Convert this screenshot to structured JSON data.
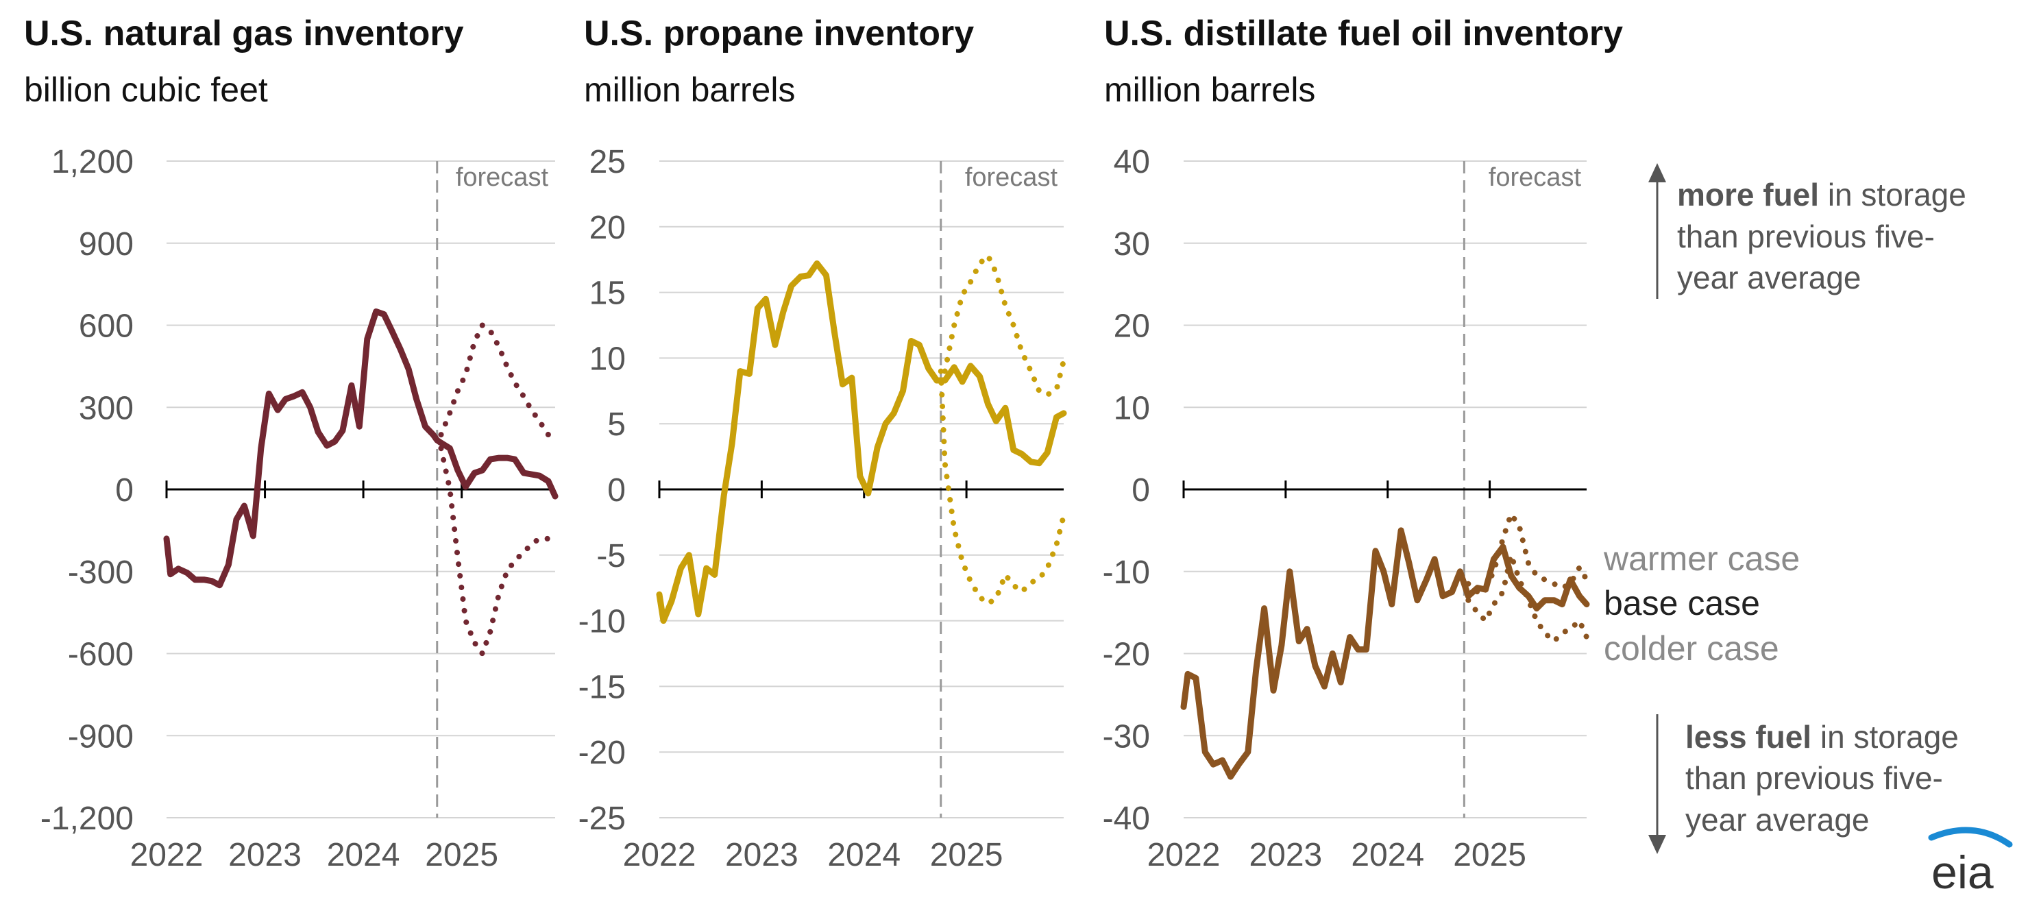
{
  "colors": {
    "gas": "#722731",
    "propane": "#c9a00a",
    "distillate": "#8b5420",
    "grid": "#d4d4d4",
    "text": "#555555"
  },
  "chart_data": [
    {
      "type": "line",
      "title": "U.S. natural gas inventory",
      "subtitle": "billion cubic feet",
      "ylim": [
        -1200,
        1200
      ],
      "yticks": [
        "1,200",
        "900",
        "600",
        "300",
        "0",
        "-300",
        "-600",
        "-900",
        "-1,200"
      ],
      "ytick_values": [
        1200,
        900,
        600,
        300,
        0,
        -300,
        -600,
        -900,
        -1200
      ],
      "xlim": [
        2022.0,
        2025.95
      ],
      "xticks": [
        "2022",
        "2023",
        "2024",
        "2025"
      ],
      "forecast_start": 2024.75,
      "forecast_label": "forecast",
      "series": [
        {
          "role": "base",
          "x": [
            2022.0,
            2022.04,
            2022.12,
            2022.21,
            2022.29,
            2022.38,
            2022.46,
            2022.54,
            2022.63,
            2022.71,
            2022.79,
            2022.88,
            2022.96,
            2023.04,
            2023.13,
            2023.21,
            2023.29,
            2023.38,
            2023.46,
            2023.54,
            2023.63,
            2023.71,
            2023.79,
            2023.88,
            2023.96,
            2024.04,
            2024.13,
            2024.21,
            2024.29,
            2024.38,
            2024.46,
            2024.54,
            2024.63,
            2024.71,
            2024.75,
            2024.79,
            2024.88,
            2024.96,
            2025.04,
            2025.13,
            2025.21,
            2025.29,
            2025.38,
            2025.46,
            2025.54,
            2025.63,
            2025.71,
            2025.79,
            2025.88,
            2025.95
          ],
          "y": [
            -180,
            -310,
            -290,
            -305,
            -330,
            -330,
            -335,
            -350,
            -275,
            -110,
            -60,
            -170,
            150,
            350,
            290,
            330,
            340,
            355,
            300,
            210,
            160,
            175,
            215,
            380,
            230,
            550,
            650,
            640,
            580,
            510,
            440,
            330,
            230,
            200,
            180,
            170,
            150,
            70,
            10,
            60,
            70,
            110,
            115,
            115,
            110,
            60,
            55,
            50,
            30,
            -25
          ]
        },
        {
          "role": "warmer",
          "x": [
            2024.79,
            2024.88,
            2024.96,
            2025.04,
            2025.13,
            2025.21,
            2025.29,
            2025.38,
            2025.46,
            2025.54,
            2025.63,
            2025.71,
            2025.79,
            2025.88,
            2025.95
          ],
          "y": [
            200,
            280,
            360,
            420,
            540,
            600,
            580,
            520,
            450,
            390,
            340,
            290,
            250,
            200,
            170
          ]
        },
        {
          "role": "colder",
          "x": [
            2024.79,
            2024.88,
            2024.96,
            2025.04,
            2025.13,
            2025.21,
            2025.29,
            2025.38,
            2025.46,
            2025.54,
            2025.63,
            2025.71,
            2025.79,
            2025.88,
            2025.95
          ],
          "y": [
            150,
            0,
            -250,
            -480,
            -560,
            -600,
            -520,
            -380,
            -300,
            -260,
            -230,
            -200,
            -180,
            -180,
            -210
          ]
        }
      ]
    },
    {
      "type": "line",
      "title": "U.S. propane inventory",
      "subtitle": "million barrels",
      "ylim": [
        -25,
        25
      ],
      "yticks": [
        "25",
        "20",
        "15",
        "10",
        "5",
        "0",
        "-5",
        "-10",
        "-15",
        "-20",
        "-25"
      ],
      "ytick_values": [
        25,
        20,
        15,
        10,
        5,
        0,
        -5,
        -10,
        -15,
        -20,
        -25
      ],
      "xlim": [
        2022.0,
        2025.95
      ],
      "xticks": [
        "2022",
        "2023",
        "2024",
        "2025"
      ],
      "forecast_start": 2024.75,
      "forecast_label": "forecast",
      "series": [
        {
          "role": "base",
          "x": [
            2022.0,
            2022.04,
            2022.12,
            2022.21,
            2022.29,
            2022.38,
            2022.46,
            2022.54,
            2022.63,
            2022.71,
            2022.79,
            2022.88,
            2022.96,
            2023.04,
            2023.13,
            2023.21,
            2023.29,
            2023.38,
            2023.46,
            2023.54,
            2023.63,
            2023.71,
            2023.79,
            2023.88,
            2023.96,
            2024.04,
            2024.13,
            2024.21,
            2024.29,
            2024.38,
            2024.46,
            2024.54,
            2024.63,
            2024.71,
            2024.79,
            2024.88,
            2024.96,
            2025.04,
            2025.13,
            2025.21,
            2025.29,
            2025.38,
            2025.46,
            2025.54,
            2025.63,
            2025.71,
            2025.79,
            2025.88,
            2025.95
          ],
          "y": [
            -8,
            -10,
            -8.5,
            -6,
            -5,
            -9.5,
            -6,
            -6.5,
            -0.5,
            3.5,
            9,
            8.8,
            13.8,
            14.5,
            11,
            13.5,
            15.5,
            16.2,
            16.3,
            17.2,
            16.3,
            12,
            8,
            8.5,
            1,
            -0.3,
            3.2,
            5,
            5.8,
            7.5,
            11.3,
            11,
            9.2,
            8.3,
            8.3,
            9.3,
            8.2,
            9.4,
            8.6,
            6.5,
            5.2,
            6.2,
            3,
            2.7,
            2.1,
            2,
            2.8,
            5.5,
            5.8
          ]
        },
        {
          "role": "warmer",
          "x": [
            2024.79,
            2024.88,
            2024.96,
            2025.04,
            2025.13,
            2025.21,
            2025.29,
            2025.38,
            2025.46,
            2025.54,
            2025.63,
            2025.71,
            2025.79,
            2025.88,
            2025.95
          ],
          "y": [
            9,
            12.5,
            14.8,
            15.8,
            17.2,
            17.8,
            16.5,
            14,
            12.5,
            10.5,
            9,
            7.5,
            7.2,
            7.6,
            9.8
          ]
        },
        {
          "role": "colder",
          "x": [
            2024.75,
            2024.79,
            2024.88,
            2024.96,
            2025.04,
            2025.13,
            2025.21,
            2025.29,
            2025.38,
            2025.46,
            2025.54,
            2025.63,
            2025.71,
            2025.79,
            2025.88,
            2025.95
          ],
          "y": [
            9,
            2,
            -3,
            -5.5,
            -7,
            -8.2,
            -8.7,
            -8.3,
            -6.5,
            -7.3,
            -7.8,
            -7.1,
            -6.8,
            -6,
            -4.2,
            -2
          ]
        }
      ]
    },
    {
      "type": "line",
      "title": "U.S. distillate fuel oil inventory",
      "subtitle": "million barrels",
      "ylim": [
        -40,
        40
      ],
      "yticks": [
        "40",
        "30",
        "20",
        "10",
        "0",
        "-10",
        "-20",
        "-30",
        "-40"
      ],
      "ytick_values": [
        40,
        30,
        20,
        10,
        0,
        -10,
        -20,
        -30,
        -40
      ],
      "xlim": [
        2022.0,
        2025.95
      ],
      "xticks": [
        "2022",
        "2023",
        "2024",
        "2025"
      ],
      "forecast_start": 2024.75,
      "forecast_label": "forecast",
      "series": [
        {
          "role": "base",
          "x": [
            2022.0,
            2022.04,
            2022.12,
            2022.21,
            2022.29,
            2022.38,
            2022.46,
            2022.54,
            2022.63,
            2022.71,
            2022.79,
            2022.88,
            2022.96,
            2023.04,
            2023.13,
            2023.21,
            2023.29,
            2023.38,
            2023.46,
            2023.54,
            2023.63,
            2023.71,
            2023.79,
            2023.88,
            2023.96,
            2024.04,
            2024.13,
            2024.21,
            2024.29,
            2024.38,
            2024.46,
            2024.54,
            2024.63,
            2024.71,
            2024.79,
            2024.88,
            2024.96,
            2025.04,
            2025.13,
            2025.21,
            2025.29,
            2025.38,
            2025.46,
            2025.54,
            2025.63,
            2025.71,
            2025.79,
            2025.88,
            2025.95
          ],
          "y": [
            -26.5,
            -22.5,
            -23,
            -32,
            -33.5,
            -33,
            -35,
            -33.5,
            -32,
            -22,
            -14.5,
            -24.5,
            -19,
            -10,
            -18.5,
            -17,
            -21.5,
            -24,
            -20,
            -23.5,
            -18,
            -19.5,
            -19.5,
            -7.5,
            -10,
            -14,
            -5,
            -9,
            -13.5,
            -11,
            -8.5,
            -13,
            -12.5,
            -10,
            -13,
            -12,
            -12.2,
            -8.5,
            -7,
            -10.5,
            -12,
            -13,
            -14.5,
            -13.5,
            -13.5,
            -14,
            -11,
            -13,
            -14
          ]
        },
        {
          "role": "warmer",
          "x": [
            2024.79,
            2024.88,
            2024.96,
            2025.04,
            2025.13,
            2025.21,
            2025.29,
            2025.38,
            2025.46,
            2025.54,
            2025.63,
            2025.71,
            2025.79,
            2025.88,
            2025.95
          ],
          "y": [
            -11.5,
            -12.5,
            -12,
            -10,
            -6,
            -3,
            -4.5,
            -9,
            -10.5,
            -11,
            -11.5,
            -12,
            -11.5,
            -9.5,
            -11
          ]
        },
        {
          "role": "colder",
          "x": [
            2024.79,
            2024.88,
            2024.96,
            2025.04,
            2025.13,
            2025.21,
            2025.29,
            2025.38,
            2025.46,
            2025.54,
            2025.63,
            2025.71,
            2025.79,
            2025.88,
            2025.95
          ],
          "y": [
            -13.5,
            -15,
            -16,
            -14,
            -12.5,
            -8,
            -11,
            -13.5,
            -16,
            -17.5,
            -18.5,
            -17.5,
            -17,
            -16,
            -18
          ]
        }
      ]
    }
  ],
  "annotations": {
    "more_fuel": {
      "bold": "more fuel",
      "line1_rest": " in storage",
      "line2": "than previous five-",
      "line3": "year average"
    },
    "less_fuel": {
      "bold": "less fuel",
      "line1_rest": " in storage",
      "line2": "than previous five-",
      "line3": "year average"
    },
    "legend": {
      "warmer": "warmer case",
      "base": "base case",
      "colder": "colder case"
    }
  },
  "logo": {
    "text": "eia"
  }
}
